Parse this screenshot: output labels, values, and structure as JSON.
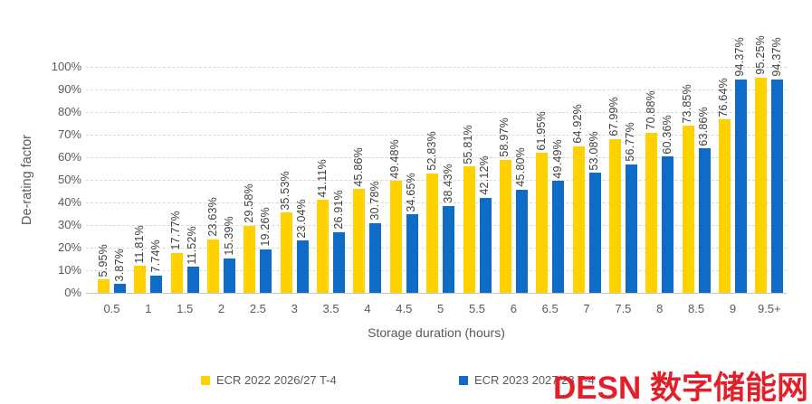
{
  "chart_data": {
    "type": "bar",
    "title": "",
    "xlabel": "Storage duration (hours)",
    "ylabel": "De-rating factor",
    "categories": [
      "0.5",
      "1",
      "1.5",
      "2",
      "2.5",
      "3",
      "3.5",
      "4",
      "4.5",
      "5",
      "5.5",
      "6",
      "6.5",
      "7",
      "7.5",
      "8",
      "8.5",
      "9",
      "9.5+"
    ],
    "series": [
      {
        "name": "ECR 2022 2026/27 T-4",
        "color": "#ffd100",
        "values": [
          5.95,
          11.81,
          17.77,
          23.63,
          29.58,
          35.53,
          41.11,
          45.86,
          49.48,
          52.83,
          55.81,
          58.97,
          61.95,
          64.92,
          67.99,
          70.88,
          73.85,
          76.64,
          95.25
        ],
        "labels": [
          "5.95%",
          "11.81%",
          "17.77%",
          "23.63%",
          "29.58%",
          "35.53%",
          "41.11%",
          "45.86%",
          "49.48%",
          "52.83%",
          "55.81%",
          "58.97%",
          "61.95%",
          "64.92%",
          "67.99%",
          "70.88%",
          "73.85%",
          "76.64%",
          "95.25%"
        ]
      },
      {
        "name": "ECR 2023 2027/28 T-4",
        "color": "#0f6cc6",
        "values": [
          3.87,
          7.74,
          11.52,
          15.39,
          19.26,
          23.04,
          26.91,
          30.78,
          34.65,
          38.43,
          42.12,
          45.8,
          49.49,
          53.08,
          56.77,
          60.36,
          63.86,
          94.37,
          94.37
        ],
        "labels": [
          "3.87%",
          "7.74%",
          "11.52%",
          "15.39%",
          "19.26%",
          "23.04%",
          "26.91%",
          "30.78%",
          "34.65%",
          "38.43%",
          "42.12%",
          "45.80%",
          "49.49%",
          "53.08%",
          "56.77%",
          "60.36%",
          "63.86%",
          "94.37%",
          "94.37%"
        ]
      }
    ],
    "ylim": [
      0,
      100
    ],
    "yticks": [
      "0%",
      "10%",
      "20%",
      "30%",
      "40%",
      "50%",
      "60%",
      "70%",
      "80%",
      "90%",
      "100%"
    ],
    "grid": true,
    "legend_position": "bottom"
  },
  "watermark": {
    "text": "DESN 数字储能网",
    "color": "#e2202a"
  }
}
